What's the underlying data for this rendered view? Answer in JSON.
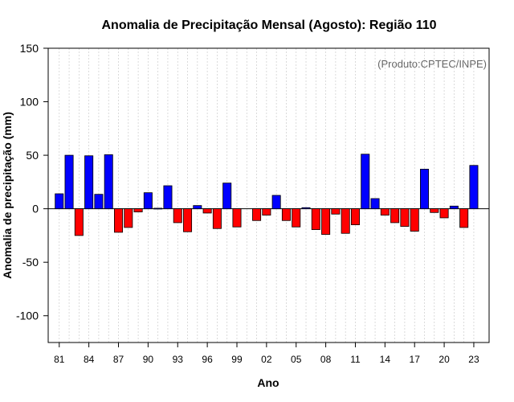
{
  "chart_data": {
    "type": "bar",
    "title": "Anomalia de Precipitação Mensal (Agosto): Região 110",
    "xlabel": "Ano",
    "ylabel": "Anomalia de precipitação (mm)",
    "credit": "(Produto:CPTEC/INPE)",
    "ylim": [
      -125,
      150
    ],
    "yticks": [
      -100,
      -50,
      0,
      50,
      100,
      150
    ],
    "categories": [
      1981,
      1982,
      1983,
      1984,
      1985,
      1986,
      1987,
      1988,
      1989,
      1990,
      1991,
      1992,
      1993,
      1994,
      1995,
      1996,
      1997,
      1998,
      1999,
      2000,
      2001,
      2002,
      2003,
      2004,
      2005,
      2006,
      2007,
      2008,
      2009,
      2010,
      2011,
      2012,
      2013,
      2014,
      2015,
      2016,
      2017,
      2018,
      2019,
      2020,
      2021,
      2022,
      2023
    ],
    "values": [
      14,
      50,
      -25,
      49.5,
      13.5,
      50.5,
      -22,
      -17.5,
      -3,
      15,
      0.5,
      21.5,
      -13,
      -21.5,
      3,
      -4,
      -18.5,
      24,
      -17,
      0,
      -11,
      -6,
      12.5,
      -11,
      -17,
      1,
      -19.5,
      -24,
      -5,
      -23,
      -15,
      51,
      9.5,
      -6,
      -13,
      -16.5,
      -21,
      37,
      -3.5,
      -8.5,
      2.5,
      -17.5,
      40.5
    ],
    "xtick_labels": [
      "81",
      "84",
      "87",
      "90",
      "93",
      "96",
      "99",
      "02",
      "05",
      "08",
      "11",
      "14",
      "17",
      "20",
      "23"
    ],
    "positive_color": "#0000ff",
    "negative_color": "#ff0000",
    "grid": true,
    "zero_line": true
  }
}
